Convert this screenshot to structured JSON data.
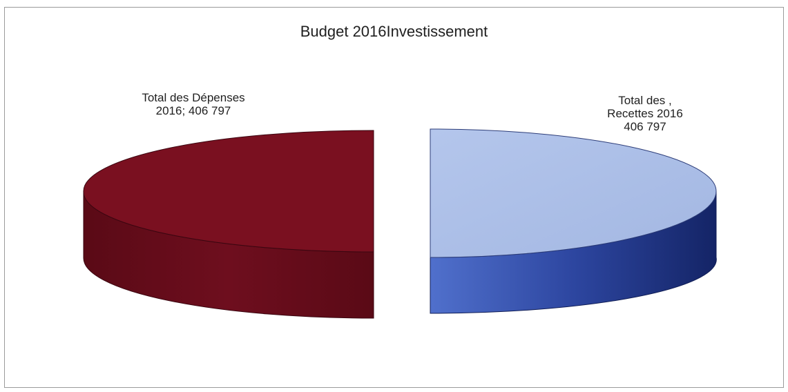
{
  "chart_data": {
    "type": "pie",
    "title": "Budget 2016Investissement",
    "slices": [
      {
        "label_line1": "Total des Dépenses",
        "label_line2": "2016; 406 797",
        "value": 406797,
        "color_top": "#7a1020",
        "color_side": "#5e0a18"
      },
      {
        "label_line1": "Total des ,",
        "label_line2": "Recettes 2016",
        "label_line3": "406 797",
        "value": 406797,
        "color_top": "#a9bde6",
        "color_side_light": "#4d6cc4",
        "color_side_dark": "#16266b"
      }
    ],
    "style": "3d-exploded",
    "legend": "none"
  }
}
